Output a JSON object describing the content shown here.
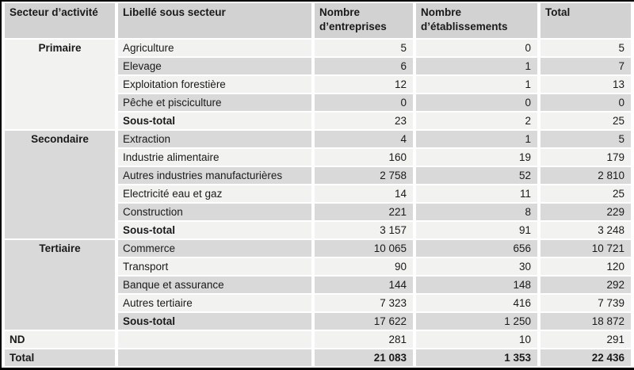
{
  "table": {
    "columns": [
      "Secteur d’activité",
      "Libellé sous secteur",
      "Nombre d’entreprises",
      "Nombre d’établissements",
      "Total"
    ],
    "groups": [
      {
        "sector": "Primaire",
        "rows": [
          {
            "label": "Agriculture",
            "values": [
              "5",
              "0",
              "5"
            ]
          },
          {
            "label": "Elevage",
            "values": [
              "6",
              "1",
              "7"
            ]
          },
          {
            "label": "Exploitation forestière",
            "values": [
              "12",
              "1",
              "13"
            ]
          },
          {
            "label": "Pêche et pisciculture",
            "values": [
              "0",
              "0",
              "0"
            ]
          },
          {
            "label": "Sous-total",
            "values": [
              "23",
              "2",
              "25"
            ],
            "is_subtotal": true
          }
        ]
      },
      {
        "sector": "Secondaire",
        "rows": [
          {
            "label": "Extraction",
            "values": [
              "4",
              "1",
              "5"
            ]
          },
          {
            "label": "Industrie alimentaire",
            "values": [
              "160",
              "19",
              "179"
            ]
          },
          {
            "label": "Autres industries manufacturières",
            "values": [
              "2 758",
              "52",
              "2 810"
            ]
          },
          {
            "label": "Electricité eau et gaz",
            "values": [
              "14",
              "11",
              "25"
            ]
          },
          {
            "label": "Construction",
            "values": [
              "221",
              "8",
              "229"
            ]
          },
          {
            "label": "Sous-total",
            "values": [
              "3 157",
              "91",
              "3 248"
            ],
            "is_subtotal": true
          }
        ]
      },
      {
        "sector": "Tertiaire",
        "rows": [
          {
            "label": "Commerce",
            "values": [
              "10 065",
              "656",
              "10 721"
            ]
          },
          {
            "label": "Transport",
            "values": [
              "90",
              "30",
              "120"
            ]
          },
          {
            "label": "Banque et assurance",
            "values": [
              "144",
              "148",
              "292"
            ]
          },
          {
            "label": "Autres tertiaire",
            "values": [
              "7 323",
              "416",
              "7 739"
            ]
          },
          {
            "label": "Sous-total",
            "values": [
              "17 622",
              "1 250",
              "18 872"
            ],
            "is_subtotal": true
          }
        ]
      }
    ],
    "footer_rows": [
      {
        "label": "ND",
        "values": [
          "281",
          "10",
          "291"
        ]
      },
      {
        "label": "Total",
        "values": [
          "21 083",
          "1 353",
          "22 436"
        ],
        "is_grand_total": true
      }
    ]
  },
  "colors": {
    "header_bg": "#d2d2d2",
    "row_gray": "#d9d9d9",
    "row_light": "#f2f2f0",
    "border_color": "#000000",
    "text_color": "#1a1a1a"
  }
}
